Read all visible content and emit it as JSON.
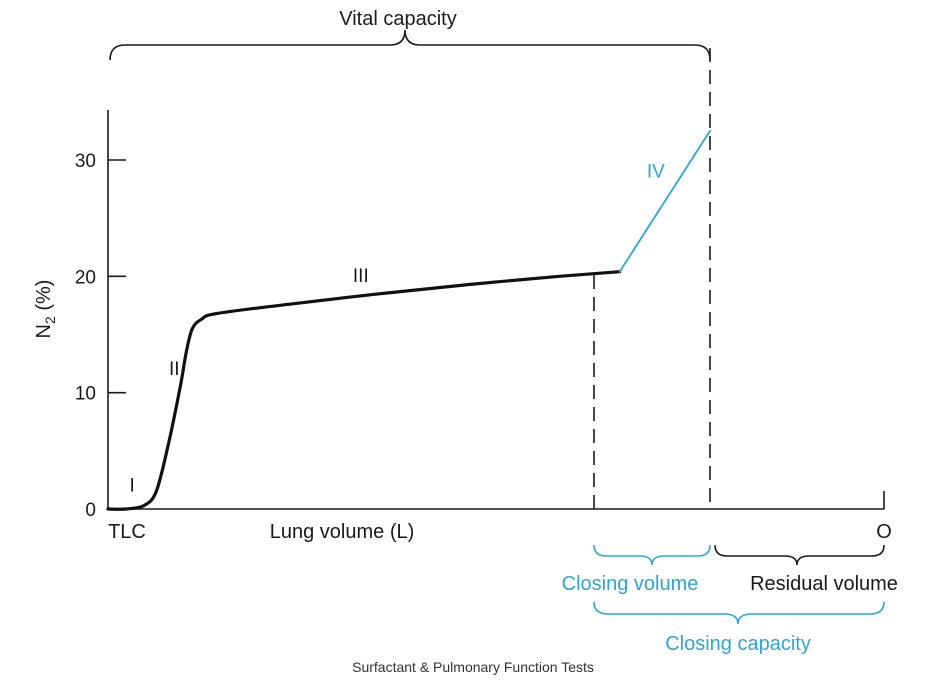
{
  "chart_data": {
    "type": "line",
    "ylabel": "N",
    "ylabel_subscript": "2",
    "ylabel_suffix": " (%)",
    "xlabel": "Lung volume (L)",
    "x_start_label": "TLC",
    "x_end_label": "O",
    "ylim": [
      0,
      34
    ],
    "yticks": [
      "0",
      "10",
      "20",
      "30"
    ],
    "ytick_values": [
      0,
      10,
      20,
      30
    ],
    "grid": false,
    "series": [
      {
        "color": "#111111",
        "x": [
          0.0,
          0.03,
          0.06,
          0.08,
          0.1,
          0.12,
          0.13,
          0.14,
          0.155,
          0.18,
          0.3,
          0.45,
          0.6,
          0.75,
          0.85
        ],
        "y": [
          0.0,
          0.0,
          0.3,
          1.5,
          5.5,
          10.5,
          13.5,
          15.5,
          16.3,
          16.8,
          17.6,
          18.5,
          19.3,
          20.0,
          20.4
        ]
      },
      {
        "color": "#2aa6d8",
        "x": [
          0.85,
          1.0
        ],
        "y": [
          20.4,
          32.5
        ]
      }
    ],
    "phase_labels": [
      {
        "text": "I",
        "x": 0.04,
        "y": 1.5,
        "color": "#1a1a1a"
      },
      {
        "text": "II",
        "x": 0.11,
        "y": 11.5,
        "color": "#1a1a1a"
      },
      {
        "text": "III",
        "x": 0.42,
        "y": 19.5,
        "color": "#1a1a1a"
      },
      {
        "text": "IV",
        "x": 0.91,
        "y": 28.5,
        "color": "#2aa6d8"
      }
    ]
  },
  "annotations": {
    "vital_capacity": "Vital capacity",
    "closing_volume": "Closing volume",
    "residual_volume": "Residual volume",
    "closing_capacity": "Closing capacity"
  },
  "footer": "Surfactant & Pulmonary Function Tests",
  "colors": {
    "curve": "#111111",
    "accent": "#2aa6d8",
    "axis": "#1a1a1a"
  }
}
